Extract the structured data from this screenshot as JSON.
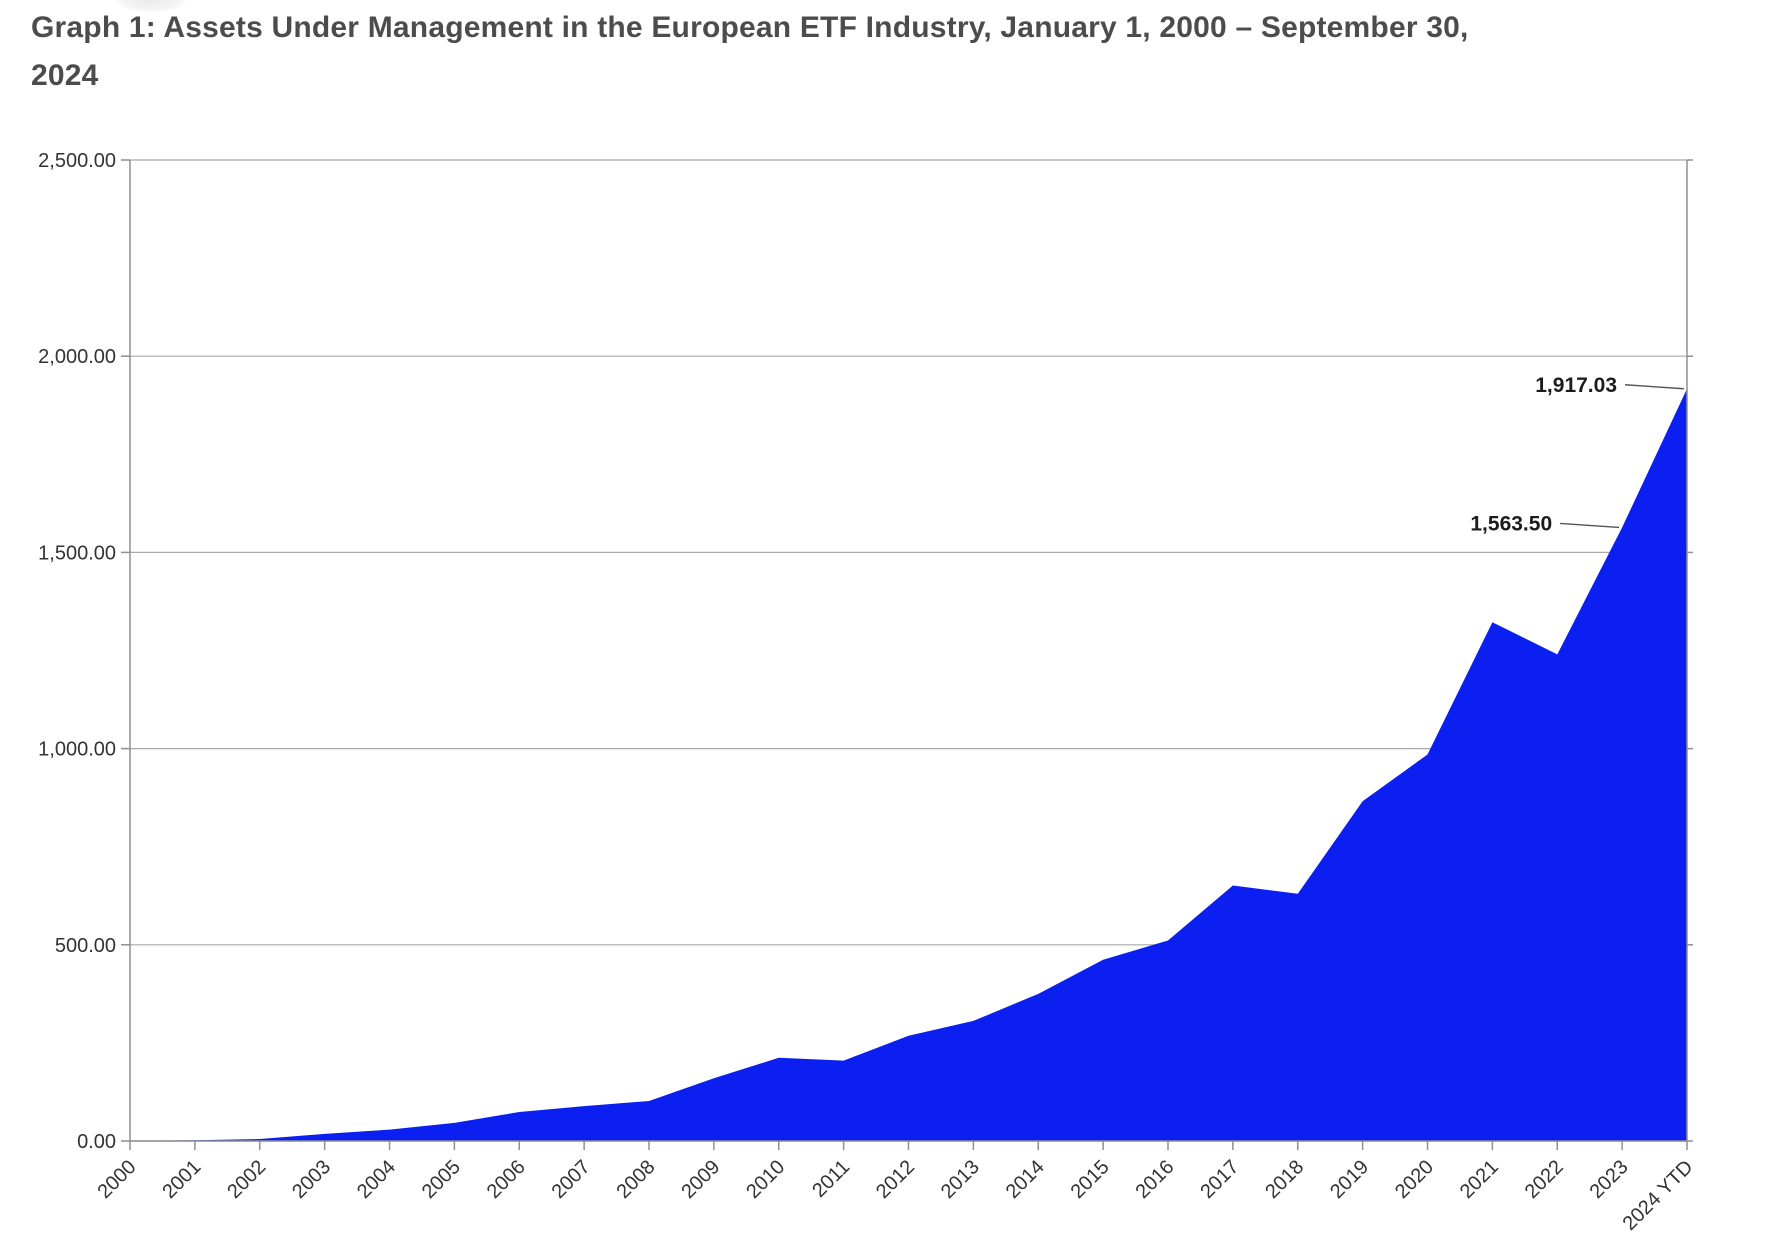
{
  "title": "Graph 1: Assets Under Management in the European ETF Industry, January 1, 2000 – September 30, 2024",
  "colors": {
    "area_fill": "#0b1ff0",
    "grid_line": "#a9a9a9",
    "axis_line": "#8f8f8f",
    "title_text": "#4c4c4e",
    "tick_text": "#333333",
    "annotation_text": "#1c1c1c",
    "leader_line": "#555555",
    "background": "#ffffff"
  },
  "chart_data": {
    "type": "area",
    "title": "Graph 1: Assets Under Management in the European ETF Industry, January 1, 2000 – September 30, 2024",
    "xlabel": "",
    "ylabel": "",
    "categories": [
      "2000",
      "2001",
      "2002",
      "2003",
      "2004",
      "2005",
      "2006",
      "2007",
      "2008",
      "2009",
      "2010",
      "2011",
      "2012",
      "2013",
      "2014",
      "2015",
      "2016",
      "2017",
      "2018",
      "2019",
      "2020",
      "2021",
      "2022",
      "2023",
      "2024 YTD"
    ],
    "values": [
      0.5,
      2,
      5,
      18,
      29,
      46,
      74,
      89,
      102,
      160,
      212,
      205,
      268,
      306,
      375,
      462,
      511,
      651,
      630,
      866,
      985,
      1322,
      1240,
      1563.5,
      1917.03
    ],
    "ylim": [
      0,
      2500
    ],
    "grid": true,
    "legend": false,
    "yticks": [
      {
        "value": 0,
        "label": "0.00"
      },
      {
        "value": 500,
        "label": "500.00"
      },
      {
        "value": 1000,
        "label": "1,000.00"
      },
      {
        "value": 1500,
        "label": "1,500.00"
      },
      {
        "value": 2000,
        "label": "2,000.00"
      },
      {
        "value": 2500,
        "label": "2,500.00"
      }
    ],
    "annotations": [
      {
        "label": "1,917.03",
        "index": 24,
        "value": 1917.03
      },
      {
        "label": "1,563.50",
        "index": 23,
        "value": 1563.5
      }
    ]
  }
}
